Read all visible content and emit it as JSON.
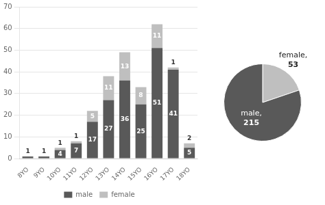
{
  "chart_data": [
    {
      "type": "bar",
      "stacked": true,
      "categories": [
        "8YO",
        "9YO",
        "10YO",
        "11YO",
        "12YO",
        "13YO",
        "14YO",
        "15YO",
        "16YO",
        "17YO",
        "18YO"
      ],
      "series": [
        {
          "name": "male",
          "color": "#595959",
          "values": [
            1,
            1,
            4,
            7,
            17,
            27,
            36,
            25,
            51,
            41,
            5
          ]
        },
        {
          "name": "female",
          "color": "#bfbfbf",
          "values": [
            0,
            0,
            1,
            1,
            5,
            11,
            13,
            8,
            11,
            1,
            2
          ]
        }
      ],
      "ylim": [
        0,
        70
      ],
      "yticks": [
        0,
        10,
        20,
        30,
        40,
        50,
        60,
        70
      ],
      "grid": true,
      "legend": "bottom",
      "data_labels": true
    },
    {
      "type": "pie",
      "categories": [
        "female,",
        "male,"
      ],
      "values": [
        53,
        215
      ],
      "colors": [
        "#bfbfbf",
        "#595959"
      ],
      "data_labels": true
    }
  ]
}
